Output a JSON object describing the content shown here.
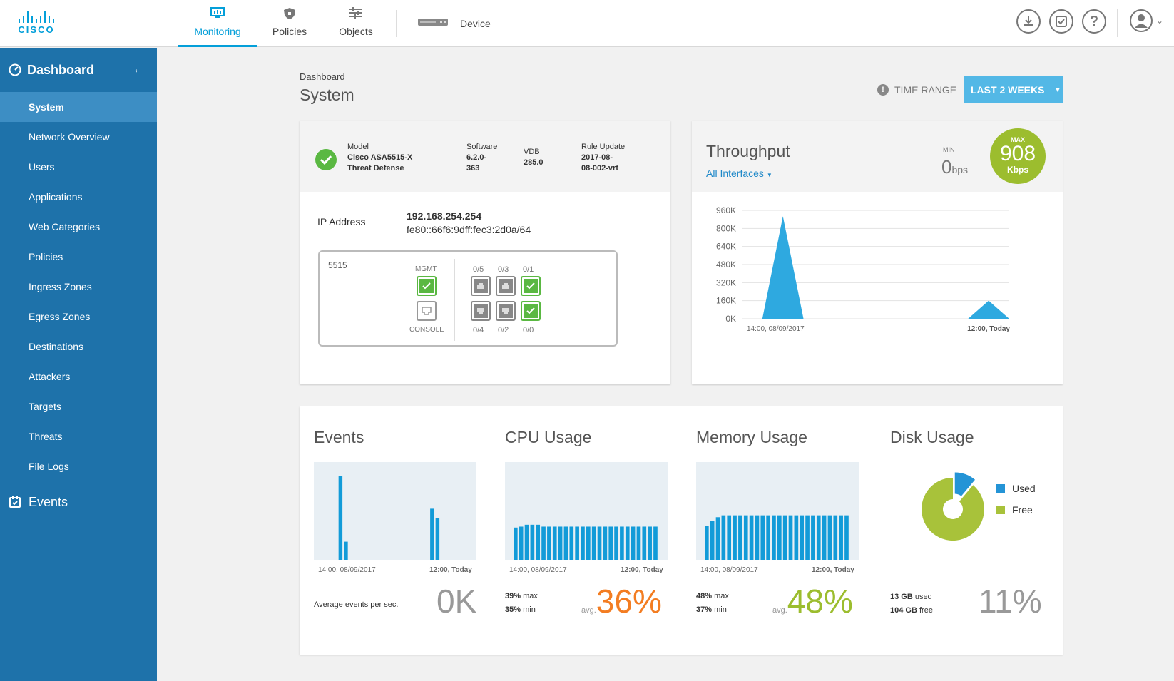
{
  "brand": "CISCO",
  "nav": {
    "monitoring": "Monitoring",
    "policies": "Policies",
    "objects": "Objects",
    "device": "Device"
  },
  "sidebar": {
    "title": "Dashboard",
    "items": [
      "System",
      "Network Overview",
      "Users",
      "Applications",
      "Web Categories",
      "Policies",
      "Ingress Zones",
      "Egress Zones",
      "Destinations",
      "Attackers",
      "Targets",
      "Threats",
      "File Logs"
    ],
    "events": "Events"
  },
  "header": {
    "breadcrumb": "Dashboard",
    "title": "System",
    "time_range_label": "TIME RANGE",
    "time_range_value": "LAST 2 WEEKS"
  },
  "device": {
    "model_label": "Model",
    "model_value_1": "Cisco ASA5515-X",
    "model_value_2": "Threat Defense",
    "software_label": "Software",
    "software_value_1": "6.2.0-",
    "software_value_2": "363",
    "vdb_label": "VDB",
    "vdb_value": "285.0",
    "rule_label": "Rule Update",
    "rule_value_1": "2017-08-",
    "rule_value_2": "08-002-vrt",
    "ip_label": "IP Address",
    "ipv4": "192.168.254.254",
    "ipv6": "fe80::66f6:9dff:fec3:2d0a/64",
    "chassis_model": "5515",
    "mgmt_label": "MGMT",
    "console_label": "CONSOLE",
    "ports_top": [
      "0/5",
      "0/3",
      "0/1"
    ],
    "ports_bottom": [
      "0/4",
      "0/2",
      "0/0"
    ]
  },
  "throughput": {
    "title": "Throughput",
    "interfaces": "All Interfaces",
    "min_label": "MIN",
    "min_value": "0",
    "min_unit": "bps",
    "max_label": "MAX",
    "max_value": "908",
    "max_unit": "Kbps"
  },
  "chart_data": [
    {
      "type": "area",
      "title": "Throughput",
      "y_ticks": [
        "960K",
        "800K",
        "640K",
        "480K",
        "320K",
        "160K",
        "0K"
      ],
      "x_ticks": [
        "14:00, 08/09/2017",
        "12:00, Today"
      ],
      "ylim": [
        0,
        960000
      ],
      "x": [
        0,
        1,
        2,
        3,
        4,
        5,
        6,
        7,
        8,
        9,
        10,
        11,
        12,
        13
      ],
      "values": [
        0,
        0,
        908000,
        0,
        0,
        0,
        0,
        0,
        0,
        0,
        0,
        0,
        160000,
        0
      ]
    },
    {
      "type": "bar",
      "title": "Events",
      "x_ticks": [
        "14:00, 08/09/2017",
        "12:00, Today"
      ],
      "ylim": [
        0,
        1
      ],
      "values": [
        0,
        0,
        0,
        0.9,
        0.2,
        0,
        0,
        0,
        0,
        0,
        0,
        0,
        0,
        0,
        0,
        0,
        0,
        0,
        0,
        0,
        0.55,
        0.45,
        0,
        0,
        0,
        0,
        0
      ]
    },
    {
      "type": "bar",
      "title": "CPU Usage",
      "x_ticks": [
        "14:00, 08/09/2017",
        "12:00, Today"
      ],
      "ylim": [
        0,
        100
      ],
      "values": [
        35,
        36,
        38,
        38,
        38,
        36,
        36,
        36,
        36,
        36,
        36,
        36,
        36,
        36,
        36,
        36,
        36,
        36,
        36,
        36,
        36,
        36,
        36,
        36,
        36,
        36
      ]
    },
    {
      "type": "bar",
      "title": "Memory Usage",
      "x_ticks": [
        "14:00, 08/09/2017",
        "12:00, Today"
      ],
      "ylim": [
        0,
        100
      ],
      "values": [
        37,
        42,
        46,
        48,
        48,
        48,
        48,
        48,
        48,
        48,
        48,
        48,
        48,
        48,
        48,
        48,
        48,
        48,
        48,
        48,
        48,
        48,
        48,
        48,
        48,
        48
      ]
    },
    {
      "type": "pie",
      "title": "Disk Usage",
      "categories": [
        "Used",
        "Free"
      ],
      "values": [
        13,
        104
      ]
    }
  ],
  "events": {
    "title": "Events",
    "x_start": "14:00, 08/09/2017",
    "x_end": "12:00, Today",
    "avg_label": "Average events per sec.",
    "value": "0K"
  },
  "cpu": {
    "title": "CPU Usage",
    "x_start": "14:00, 08/09/2017",
    "x_end": "12:00, Today",
    "max": "39%",
    "max_label": "max",
    "min": "35%",
    "min_label": "min",
    "avg_label": "avg.",
    "value": "36%"
  },
  "memory": {
    "title": "Memory Usage",
    "x_start": "14:00, 08/09/2017",
    "x_end": "12:00, Today",
    "max": "48%",
    "max_label": "max",
    "min": "37%",
    "min_label": "min",
    "avg_label": "avg.",
    "value": "48%"
  },
  "disk": {
    "title": "Disk Usage",
    "used": "13 GB",
    "used_label": "used",
    "free": "104 GB",
    "free_label": "free",
    "value": "11%",
    "legend_used": "Used",
    "legend_free": "Free"
  },
  "colors": {
    "accent": "#049fd9",
    "sidebar": "#1e72aa",
    "bar_blue": "#129bd8",
    "cpu_orange": "#f37d22",
    "memory_green": "#9cbd2e",
    "disk_used": "#2494d6",
    "disk_free": "#a8c23a",
    "ok_green": "#5ab842"
  },
  "icons": {
    "monitoring": "monitor-chart-icon",
    "policies": "shield-icon",
    "objects": "sliders-icon",
    "device": "appliance-icon",
    "deploy": "download-icon",
    "tasks": "checklist-icon",
    "help": "question-icon",
    "user": "user-avatar-icon"
  }
}
